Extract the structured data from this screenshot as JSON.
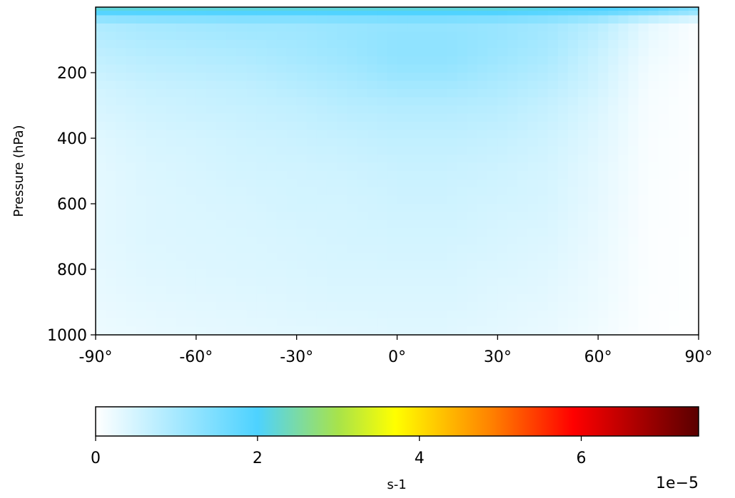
{
  "chart_data": {
    "type": "heatmap",
    "title": "",
    "xlabel": "",
    "ylabel": "Pressure (hPa)",
    "xlim": [
      -90,
      90
    ],
    "ylim": [
      1000,
      0
    ],
    "y_reversed": true,
    "grid": false,
    "x_ticks": [
      {
        "value": -90,
        "label": "-90°"
      },
      {
        "value": -60,
        "label": "-60°"
      },
      {
        "value": -30,
        "label": "-30°"
      },
      {
        "value": 0,
        "label": "0°"
      },
      {
        "value": 30,
        "label": "30°"
      },
      {
        "value": 60,
        "label": "60°"
      },
      {
        "value": 90,
        "label": "90°"
      }
    ],
    "y_ticks": [
      {
        "value": 200,
        "label": "200"
      },
      {
        "value": 400,
        "label": "400"
      },
      {
        "value": 600,
        "label": "600"
      },
      {
        "value": 800,
        "label": "800"
      },
      {
        "value": 1000,
        "label": "1000"
      }
    ],
    "x": [
      -90,
      -75,
      -60,
      -45,
      -30,
      -15,
      0,
      15,
      30,
      45,
      60,
      75,
      90
    ],
    "y": [
      1,
      50,
      100,
      150,
      200,
      250,
      300,
      400,
      500,
      600,
      700,
      800,
      900,
      1000
    ],
    "z": [
      [
        2.2,
        2.2,
        2.2,
        2.2,
        2.2,
        2.2,
        2.2,
        2.2,
        2.2,
        2.1,
        2.0,
        1.8,
        1.4
      ],
      [
        0.9,
        1.0,
        1.05,
        1.1,
        1.1,
        1.15,
        1.2,
        1.2,
        1.15,
        1.05,
        0.8,
        0.3,
        0.05
      ],
      [
        0.8,
        0.9,
        0.95,
        1.0,
        1.05,
        1.15,
        1.25,
        1.25,
        1.15,
        1.0,
        0.7,
        0.25,
        0.05
      ],
      [
        0.7,
        0.8,
        0.85,
        0.9,
        1.0,
        1.1,
        1.25,
        1.25,
        1.1,
        0.95,
        0.6,
        0.2,
        0.05
      ],
      [
        0.6,
        0.7,
        0.75,
        0.8,
        0.9,
        1.0,
        1.15,
        1.15,
        1.0,
        0.85,
        0.55,
        0.15,
        0.03
      ],
      [
        0.5,
        0.6,
        0.65,
        0.7,
        0.8,
        0.9,
        1.0,
        1.0,
        0.9,
        0.75,
        0.5,
        0.12,
        0.02
      ],
      [
        0.45,
        0.55,
        0.6,
        0.65,
        0.7,
        0.8,
        0.85,
        0.85,
        0.8,
        0.65,
        0.42,
        0.1,
        0.02
      ],
      [
        0.35,
        0.45,
        0.5,
        0.55,
        0.6,
        0.65,
        0.7,
        0.7,
        0.65,
        0.55,
        0.35,
        0.08,
        0.02
      ],
      [
        0.3,
        0.4,
        0.45,
        0.5,
        0.52,
        0.55,
        0.6,
        0.6,
        0.55,
        0.48,
        0.3,
        0.07,
        0.01
      ],
      [
        0.3,
        0.38,
        0.42,
        0.45,
        0.5,
        0.5,
        0.55,
        0.55,
        0.5,
        0.45,
        0.28,
        0.06,
        0.01
      ],
      [
        0.3,
        0.38,
        0.4,
        0.42,
        0.45,
        0.48,
        0.5,
        0.5,
        0.45,
        0.4,
        0.25,
        0.05,
        0.01
      ],
      [
        0.28,
        0.35,
        0.38,
        0.4,
        0.42,
        0.45,
        0.45,
        0.45,
        0.4,
        0.35,
        0.22,
        0.05,
        0.01
      ],
      [
        0.25,
        0.3,
        0.33,
        0.35,
        0.38,
        0.4,
        0.4,
        0.4,
        0.35,
        0.3,
        0.2,
        0.04,
        0.01
      ],
      [
        0.2,
        0.25,
        0.28,
        0.3,
        0.32,
        0.33,
        0.35,
        0.35,
        0.3,
        0.25,
        0.15,
        0.03,
        0.0
      ]
    ],
    "colorbar": {
      "label": "s-1",
      "scale_label": "1e−5",
      "range": [
        0,
        7.45
      ],
      "ticks": [
        {
          "value": 0,
          "label": "0"
        },
        {
          "value": 2,
          "label": "2"
        },
        {
          "value": 4,
          "label": "4"
        },
        {
          "value": 6,
          "label": "6"
        }
      ],
      "color_stops": [
        {
          "value": 0,
          "color": "#ffffff"
        },
        {
          "value": 2.0,
          "color": "#4dd2ff"
        },
        {
          "value": 3.0,
          "color": "#a8e34a"
        },
        {
          "value": 3.7,
          "color": "#ffff00"
        },
        {
          "value": 4.9,
          "color": "#ff8000"
        },
        {
          "value": 5.9,
          "color": "#ff0000"
        },
        {
          "value": 7.45,
          "color": "#5a0000"
        }
      ]
    }
  }
}
